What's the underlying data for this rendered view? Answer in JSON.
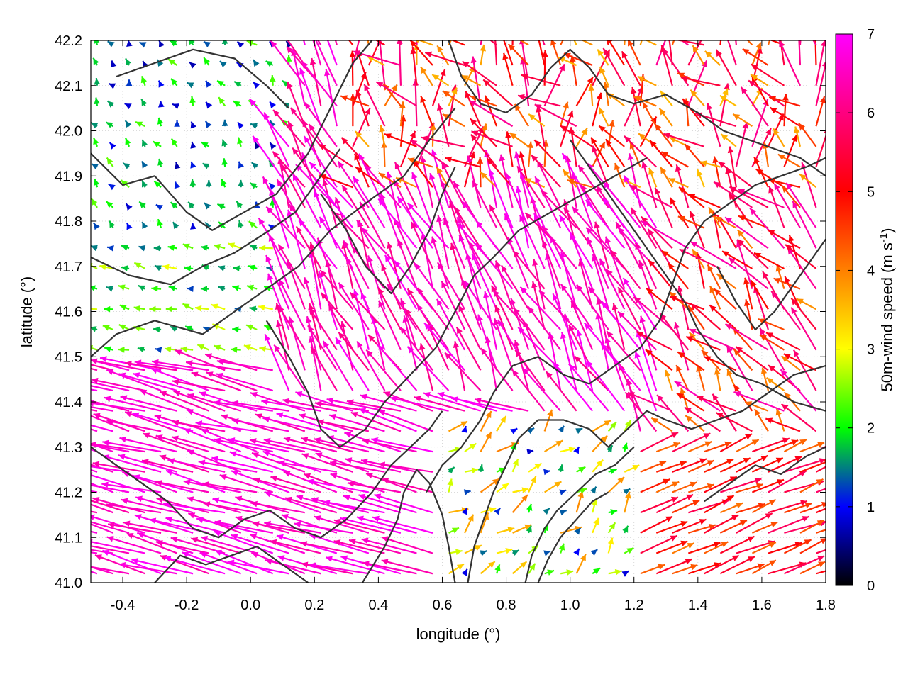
{
  "chart_data": {
    "type": "vector-field",
    "xlabel": "longitude (°)",
    "ylabel": "latitude (°)",
    "xlim": [
      -0.5,
      1.8
    ],
    "ylim": [
      41.0,
      42.2
    ],
    "xticks": [
      -0.4,
      -0.2,
      0.0,
      0.2,
      0.4,
      0.6,
      0.8,
      1.0,
      1.2,
      1.4,
      1.6,
      1.8
    ],
    "xtick_labels": [
      "-0.4",
      "-0.2",
      "0.0",
      "0.2",
      "0.4",
      "0.6",
      "0.8",
      "1.0",
      "1.2",
      "1.4",
      "1.6",
      "1.8"
    ],
    "yticks": [
      41.0,
      41.1,
      41.2,
      41.3,
      41.4,
      41.5,
      41.6,
      41.7,
      41.8,
      41.9,
      42.0,
      42.1,
      42.2
    ],
    "ytick_labels": [
      "41.0",
      "41.1",
      "41.2",
      "41.3",
      "41.4",
      "41.5",
      "41.6",
      "41.7",
      "41.8",
      "41.9",
      "42.0",
      "42.1",
      "42.2"
    ],
    "grid": true,
    "colorbar": {
      "label": "50m-wind speed (m s",
      "label_superscript": "-1",
      "label_suffix": ")",
      "range": [
        0,
        7
      ],
      "ticks": [
        0,
        1,
        2,
        3,
        4,
        5,
        6,
        7
      ],
      "tick_labels": [
        "0",
        "1",
        "2",
        "3",
        "4",
        "5",
        "6",
        "7"
      ],
      "colors": [
        "#000000",
        "#0000ff",
        "#00ff00",
        "#ffff00",
        "#ff8000",
        "#ff0000",
        "#ff00ff"
      ]
    },
    "regions": [
      {
        "lon_range": [
          -0.5,
          0.15
        ],
        "lat_range": [
          41.75,
          42.2
        ],
        "speed": [
          0.6,
          2.4
        ],
        "direction_to_deg": [
          90,
          160
        ]
      },
      {
        "lon_range": [
          -0.5,
          0.15
        ],
        "lat_range": [
          41.5,
          41.75
        ],
        "speed": [
          1.2,
          3.0
        ],
        "direction_to_deg": [
          150,
          180
        ]
      },
      {
        "lon_range": [
          -0.5,
          0.9
        ],
        "lat_range": [
          41.0,
          41.5
        ],
        "speed": [
          6.3,
          7.0
        ],
        "direction_to_deg": [
          158,
          172
        ]
      },
      {
        "lon_range": [
          0.1,
          1.3
        ],
        "lat_range": [
          41.4,
          42.0
        ],
        "speed": [
          6.0,
          7.0
        ],
        "direction_to_deg": [
          100,
          135
        ]
      },
      {
        "lon_range": [
          0.3,
          1.8
        ],
        "lat_range": [
          41.85,
          42.2
        ],
        "speed": [
          3.5,
          6.2
        ],
        "direction_to_deg": [
          60,
          170
        ]
      },
      {
        "lon_range": [
          1.1,
          1.8
        ],
        "lat_range": [
          41.0,
          41.3
        ],
        "speed": [
          4.0,
          5.8
        ],
        "direction_to_deg": [
          15,
          30
        ]
      },
      {
        "lon_range": [
          1.3,
          1.8
        ],
        "lat_range": [
          41.3,
          41.85
        ],
        "speed": [
          3.8,
          6.5
        ],
        "direction_to_deg": [
          100,
          160
        ]
      },
      {
        "lon_range": [
          0.6,
          1.2
        ],
        "lat_range": [
          41.0,
          41.35
        ],
        "speed": [
          0.8,
          4.0
        ],
        "direction_to_deg": [
          10,
          80
        ]
      }
    ],
    "contour_color": "#333333",
    "contours": [
      [
        [
          -0.42,
          42.12
        ],
        [
          -0.3,
          42.15
        ],
        [
          -0.18,
          42.18
        ],
        [
          -0.05,
          42.16
        ],
        [
          0.05,
          42.1
        ],
        [
          0.12,
          42.05
        ]
      ],
      [
        [
          -0.5,
          41.95
        ],
        [
          -0.4,
          41.88
        ],
        [
          -0.3,
          41.9
        ],
        [
          -0.2,
          41.82
        ],
        [
          -0.12,
          41.78
        ],
        [
          -0.02,
          41.82
        ],
        [
          0.08,
          41.86
        ],
        [
          0.18,
          41.95
        ],
        [
          0.25,
          42.05
        ],
        [
          0.32,
          42.15
        ],
        [
          0.38,
          42.2
        ]
      ],
      [
        [
          -0.5,
          41.72
        ],
        [
          -0.38,
          41.68
        ],
        [
          -0.25,
          41.66
        ],
        [
          -0.15,
          41.7
        ],
        [
          -0.05,
          41.73
        ],
        [
          0.06,
          41.78
        ],
        [
          0.14,
          41.82
        ],
        [
          0.22,
          41.9
        ],
        [
          0.28,
          41.96
        ]
      ],
      [
        [
          -0.5,
          41.5
        ],
        [
          -0.42,
          41.55
        ],
        [
          -0.3,
          41.58
        ],
        [
          -0.15,
          41.55
        ],
        [
          -0.05,
          41.6
        ],
        [
          0.05,
          41.65
        ],
        [
          0.15,
          41.7
        ],
        [
          0.25,
          41.78
        ],
        [
          0.38,
          41.85
        ],
        [
          0.48,
          41.9
        ],
        [
          0.56,
          41.98
        ],
        [
          0.64,
          42.05
        ]
      ],
      [
        [
          0.05,
          41.58
        ],
        [
          0.12,
          41.5
        ],
        [
          0.18,
          41.42
        ],
        [
          0.22,
          41.34
        ],
        [
          0.28,
          41.3
        ],
        [
          0.36,
          41.34
        ],
        [
          0.42,
          41.4
        ],
        [
          0.5,
          41.46
        ],
        [
          0.58,
          41.52
        ],
        [
          0.64,
          41.6
        ],
        [
          0.7,
          41.68
        ],
        [
          0.76,
          41.72
        ],
        [
          0.84,
          41.78
        ],
        [
          0.94,
          41.82
        ],
        [
          1.04,
          41.86
        ],
        [
          1.14,
          41.9
        ],
        [
          1.24,
          41.94
        ]
      ],
      [
        [
          0.22,
          41.86
        ],
        [
          0.3,
          41.78
        ],
        [
          0.36,
          41.7
        ],
        [
          0.44,
          41.64
        ],
        [
          0.5,
          41.7
        ],
        [
          0.56,
          41.78
        ],
        [
          0.6,
          41.86
        ],
        [
          0.64,
          41.92
        ]
      ],
      [
        [
          0.55,
          41.2
        ],
        [
          0.6,
          41.26
        ],
        [
          0.66,
          41.3
        ],
        [
          0.72,
          41.36
        ],
        [
          0.76,
          41.42
        ],
        [
          0.82,
          41.48
        ],
        [
          0.9,
          41.5
        ],
        [
          0.98,
          41.46
        ],
        [
          1.06,
          41.44
        ],
        [
          1.14,
          41.48
        ],
        [
          1.22,
          41.52
        ],
        [
          1.28,
          41.58
        ],
        [
          1.32,
          41.66
        ],
        [
          1.36,
          41.74
        ],
        [
          1.42,
          41.8
        ],
        [
          1.5,
          41.84
        ],
        [
          1.58,
          41.88
        ],
        [
          1.66,
          41.9
        ],
        [
          1.74,
          41.92
        ],
        [
          1.8,
          41.94
        ]
      ],
      [
        [
          0.68,
          41.0
        ],
        [
          0.7,
          41.08
        ],
        [
          0.73,
          41.14
        ],
        [
          0.76,
          41.2
        ],
        [
          0.8,
          41.26
        ],
        [
          0.84,
          41.32
        ],
        [
          0.9,
          41.36
        ],
        [
          0.98,
          41.36
        ],
        [
          1.06,
          41.34
        ],
        [
          1.12,
          41.3
        ],
        [
          1.18,
          41.34
        ],
        [
          1.24,
          41.38
        ],
        [
          1.3,
          41.36
        ],
        [
          1.38,
          41.34
        ],
        [
          1.46,
          41.36
        ],
        [
          1.54,
          41.38
        ],
        [
          1.62,
          41.42
        ],
        [
          1.7,
          41.46
        ],
        [
          1.8,
          41.48
        ]
      ],
      [
        [
          0.86,
          41.0
        ],
        [
          0.88,
          41.06
        ],
        [
          0.92,
          41.12
        ],
        [
          0.96,
          41.16
        ],
        [
          1.02,
          41.2
        ],
        [
          1.08,
          41.24
        ],
        [
          1.14,
          41.26
        ],
        [
          1.2,
          41.3
        ]
      ],
      [
        [
          0.9,
          41.0
        ],
        [
          0.93,
          41.05
        ],
        [
          0.97,
          41.1
        ],
        [
          1.02,
          41.14
        ],
        [
          1.07,
          41.18
        ],
        [
          1.12,
          41.2
        ]
      ],
      [
        [
          0.35,
          41.0
        ],
        [
          0.42,
          41.08
        ],
        [
          0.46,
          41.14
        ],
        [
          0.48,
          41.2
        ],
        [
          0.52,
          41.25
        ],
        [
          0.56,
          41.22
        ],
        [
          0.6,
          41.15
        ],
        [
          0.62,
          41.08
        ],
        [
          0.64,
          41.0
        ]
      ],
      [
        [
          -0.5,
          41.3
        ],
        [
          -0.42,
          41.26
        ],
        [
          -0.34,
          41.22
        ],
        [
          -0.26,
          41.18
        ],
        [
          -0.18,
          41.12
        ],
        [
          -0.1,
          41.1
        ],
        [
          -0.02,
          41.14
        ],
        [
          0.06,
          41.16
        ],
        [
          0.14,
          41.12
        ],
        [
          0.22,
          41.1
        ],
        [
          0.3,
          41.14
        ],
        [
          0.38,
          41.2
        ],
        [
          0.44,
          41.26
        ],
        [
          0.5,
          41.3
        ],
        [
          0.56,
          41.34
        ],
        [
          0.6,
          41.38
        ]
      ],
      [
        [
          -0.3,
          41.0
        ],
        [
          -0.22,
          41.06
        ],
        [
          -0.14,
          41.04
        ],
        [
          -0.06,
          41.06
        ],
        [
          0.02,
          41.08
        ],
        [
          0.1,
          41.04
        ],
        [
          0.18,
          41.0
        ]
      ],
      [
        [
          0.62,
          42.2
        ],
        [
          0.66,
          42.12
        ],
        [
          0.72,
          42.06
        ],
        [
          0.8,
          42.04
        ],
        [
          0.88,
          42.08
        ],
        [
          0.94,
          42.14
        ],
        [
          1.0,
          42.18
        ],
        [
          1.06,
          42.14
        ],
        [
          1.12,
          42.08
        ],
        [
          1.2,
          42.06
        ],
        [
          1.3,
          42.08
        ],
        [
          1.4,
          42.04
        ],
        [
          1.48,
          42.0
        ],
        [
          1.56,
          41.98
        ],
        [
          1.64,
          41.96
        ],
        [
          1.72,
          41.94
        ],
        [
          1.8,
          41.9
        ]
      ],
      [
        [
          1.0,
          41.98
        ],
        [
          1.06,
          41.92
        ],
        [
          1.12,
          41.86
        ],
        [
          1.18,
          41.8
        ],
        [
          1.24,
          41.74
        ],
        [
          1.3,
          41.68
        ],
        [
          1.36,
          41.62
        ],
        [
          1.4,
          41.56
        ],
        [
          1.46,
          41.5
        ],
        [
          1.52,
          41.46
        ],
        [
          1.6,
          41.44
        ],
        [
          1.7,
          41.4
        ],
        [
          1.8,
          41.38
        ]
      ],
      [
        [
          1.46,
          41.7
        ],
        [
          1.52,
          41.62
        ],
        [
          1.58,
          41.56
        ],
        [
          1.64,
          41.6
        ],
        [
          1.7,
          41.66
        ],
        [
          1.76,
          41.72
        ],
        [
          1.8,
          41.76
        ]
      ],
      [
        [
          1.42,
          41.18
        ],
        [
          1.5,
          41.22
        ],
        [
          1.58,
          41.26
        ],
        [
          1.66,
          41.24
        ],
        [
          1.74,
          41.28
        ],
        [
          1.8,
          41.3
        ]
      ]
    ]
  }
}
